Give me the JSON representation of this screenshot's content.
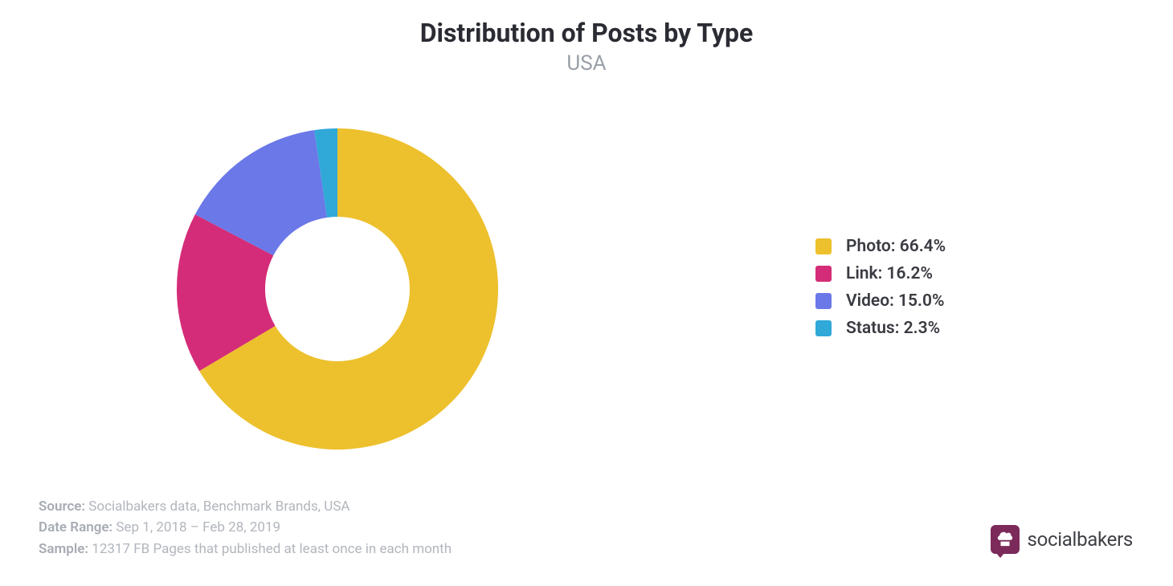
{
  "header": {
    "title": "Distribution of Posts by Type",
    "subtitle": "USA",
    "title_color": "#2b2c33",
    "title_fontsize": 32,
    "title_weight": 700,
    "subtitle_color": "#9aa0a8",
    "subtitle_fontsize": 26
  },
  "chart": {
    "type": "donut",
    "inner_radius_ratio": 0.45,
    "start_angle_deg": 0,
    "background_color": "#ffffff",
    "slice_gap_deg": 0,
    "slices": [
      {
        "label": "Photo",
        "value": 66.4,
        "color": "#edc02d"
      },
      {
        "label": "Link",
        "value": 16.2,
        "color": "#d42c78"
      },
      {
        "label": "Video",
        "value": 15.0,
        "color": "#6b78e8"
      },
      {
        "label": "Status",
        "value": 2.3,
        "color": "#30a8d8"
      }
    ]
  },
  "legend": {
    "items": [
      {
        "swatch": "#edc02d",
        "text": "Photo: 66.4%"
      },
      {
        "swatch": "#d42c78",
        "text": "Link: 16.2%"
      },
      {
        "swatch": "#6b78e8",
        "text": "Video: 15.0%"
      },
      {
        "swatch": "#30a8d8",
        "text": "Status: 2.3%"
      }
    ],
    "label_fontsize": 21,
    "label_weight": 600,
    "label_color": "#3a3b42",
    "swatch_size": 20,
    "swatch_radius": 3
  },
  "footer": {
    "rows": [
      {
        "key": "Source:",
        "value": "  Socialbakers data, Benchmark Brands, USA"
      },
      {
        "key": "Date Range:",
        "value": " Sep 1, 2018  – Feb 28, 2019"
      },
      {
        "key": "Sample:",
        "value": "  12317 FB Pages that published at least once in each month"
      }
    ],
    "fontsize": 17,
    "key_color": "#a7abb3",
    "value_color": "#b2b6bd"
  },
  "brand": {
    "name": "socialbakers",
    "icon_bg": "#7b2a5a",
    "icon_fg": "#ffffff",
    "text_color": "#3f4046",
    "text_fontsize": 24
  }
}
